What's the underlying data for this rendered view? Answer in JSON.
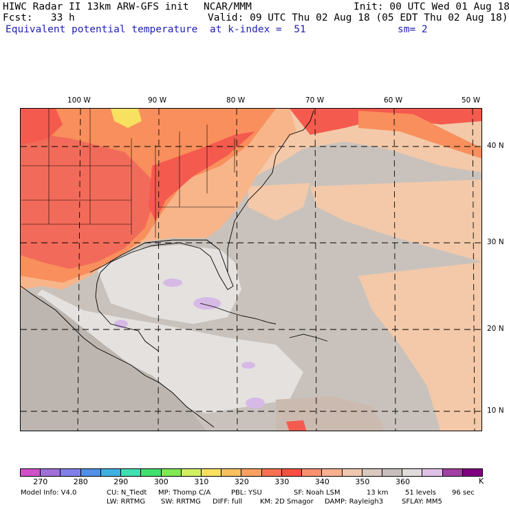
{
  "header": {
    "model_title": "HIWC Radar II 13km ARW-GFS init",
    "org": "NCAR/MMM",
    "init": "Init: 00 UTC Wed 01 Aug 18",
    "fcst": "Fcst:   33 h",
    "valid": "Valid: 09 UTC Thu 02 Aug 18 (05 EDT Thu 02 Aug 18)",
    "field": "Equivalent potential temperature",
    "level": "at k-index =  51",
    "smoothing": "sm= 2"
  },
  "map": {
    "longitude_labels": [
      "100 W",
      "90 W",
      "80 W",
      "70 W",
      "60 W",
      "50 W"
    ],
    "latitude_labels": [
      "40 N",
      "30 N",
      "20 N",
      "10 N"
    ],
    "colors": {
      "land_dark_red": "#f26b5a",
      "land_red": "#f55a4e",
      "orange": "#f98f5c",
      "light_orange": "#f8b58a",
      "peach": "#f3c9a9",
      "grey": "#c9c2bc",
      "light_grey": "#e4e1df",
      "lavender": "#d7b9e6"
    }
  },
  "colorbar": {
    "colors": [
      "#d050c8",
      "#a070d8",
      "#8080e8",
      "#5090e8",
      "#40b0e0",
      "#40e0b0",
      "#40e070",
      "#80e850",
      "#d0f060",
      "#f8e060",
      "#f8c060",
      "#f8a060",
      "#f87050",
      "#f85040",
      "#f89070",
      "#f8b090",
      "#f0c8b0",
      "#d8c8c0",
      "#c8c0bc",
      "#e0dcdc",
      "#e0c0e8",
      "#a040a0",
      "#800080"
    ],
    "tick_labels": [
      "270",
      "280",
      "290",
      "300",
      "310",
      "320",
      "330",
      "340",
      "350",
      "360"
    ],
    "unit": "K"
  },
  "footer": {
    "model_info": "Model Info: V4.0",
    "cu": "CU: N_Tiedt",
    "mp": "MP: Thomp C/A",
    "pbl": "PBL: YSU",
    "sf": "SF: Noah LSM",
    "res": "13 km",
    "levels": "51 levels",
    "dt": "96 sec",
    "lw": "LW: RRTMG",
    "sw": "SW: RRTMG",
    "diff": "DIFF: full",
    "km": "KM: 2D Smagor",
    "damp": "DAMP: Rayleigh3",
    "sflay": "SFLAY: MM5"
  }
}
